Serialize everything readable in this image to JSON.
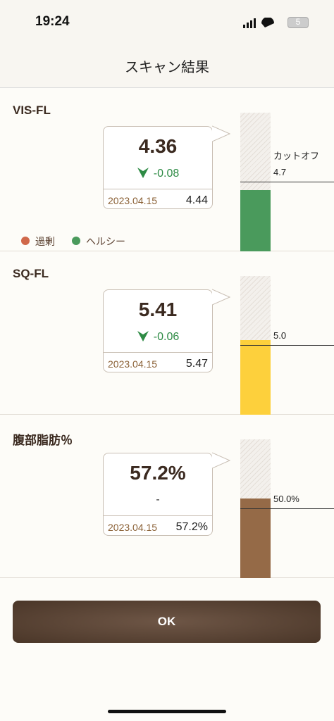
{
  "status_bar": {
    "time": "19:24",
    "battery": "5"
  },
  "header": {
    "title": "スキャン結果"
  },
  "sections": [
    {
      "name": "VIS-FL",
      "value": "4.36",
      "change": "-0.08",
      "date": "2023.04.15",
      "previous": "4.44",
      "cutoff_label": "カットオフ",
      "cutoff": "4.7"
    },
    {
      "name": "SQ-FL",
      "value": "5.41",
      "change": "-0.06",
      "date": "2023.04.15",
      "previous": "5.47",
      "cutoff": "5.0"
    },
    {
      "name": "腹部脂肪％",
      "value": "57.2%",
      "change": "-",
      "date": "2023.04.15",
      "previous": "57.2%",
      "cutoff": "50.0%"
    }
  ],
  "legend": [
    "過剰",
    "ヘルシー"
  ],
  "button": {
    "label": "OK"
  }
}
